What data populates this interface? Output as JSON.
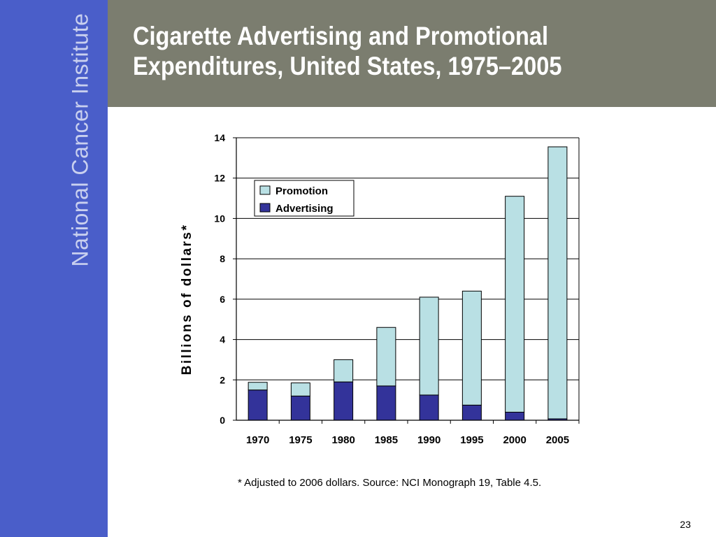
{
  "sidebar": {
    "brand": "National Cancer Institute"
  },
  "slide": {
    "title_line1": "Cigarette Advertising and Promotional",
    "title_line2": "Expenditures, United States, 1975–2005",
    "footnote": "* Adjusted to 2006 dollars.  Source: NCI Monograph 19, Table 4.5.",
    "page_number": "23"
  },
  "colors": {
    "sidebar": "#4a5ec9",
    "header": "#7b7d6f",
    "promotion": "#b9e0e4",
    "advertising": "#33339a"
  },
  "chart_data": {
    "type": "bar",
    "stacked": true,
    "categories": [
      "1970",
      "1975",
      "1980",
      "1985",
      "1990",
      "1995",
      "2000",
      "2005"
    ],
    "series": [
      {
        "name": "Advertising",
        "values": [
          1.5,
          1.2,
          1.9,
          1.7,
          1.25,
          0.75,
          0.4,
          0.07
        ]
      },
      {
        "name": "Promotion",
        "values": [
          0.38,
          0.65,
          1.1,
          2.9,
          4.85,
          5.65,
          10.7,
          13.48
        ]
      }
    ],
    "ylabel": "Billions of dollars*",
    "ylim": [
      0,
      14
    ],
    "yticks": [
      "0",
      "2",
      "4",
      "6",
      "8",
      "10",
      "12",
      "14"
    ],
    "legend_position": "top-left",
    "grid": true
  }
}
